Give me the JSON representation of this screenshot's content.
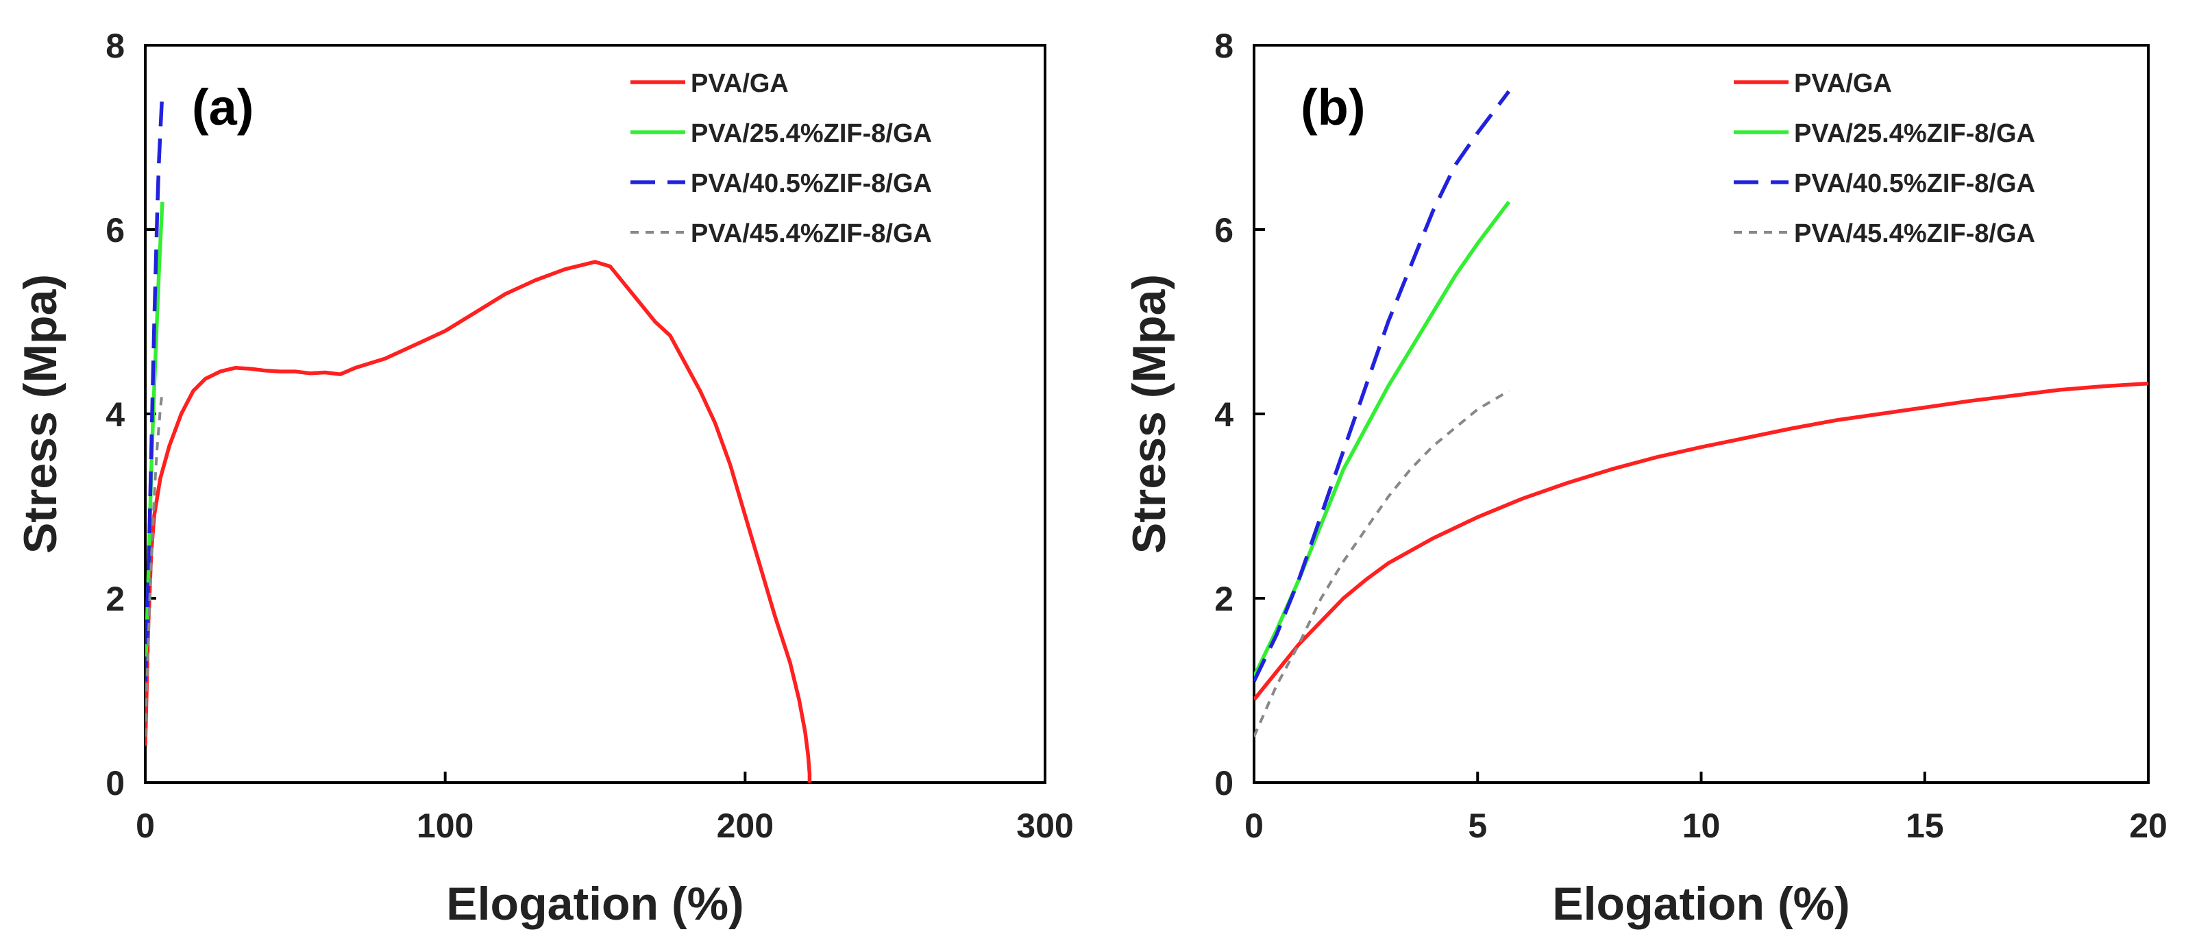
{
  "chart_data": [
    {
      "type": "line",
      "panel_label": "(a)",
      "xlabel": "Elogation (%)",
      "ylabel": "Stress (Mpa)",
      "xlim": [
        0,
        300
      ],
      "ylim": [
        0,
        8
      ],
      "xticks": [
        0,
        100,
        200,
        300
      ],
      "yticks": [
        0,
        2,
        4,
        6,
        8
      ],
      "legend_position": "top-right",
      "series": [
        {
          "name": "PVA/GA",
          "color": "#ff2020",
          "style": "solid",
          "x": [
            0,
            1,
            2,
            3,
            5,
            8,
            12,
            16,
            20,
            25,
            30,
            35,
            40,
            45,
            50,
            55,
            60,
            65,
            70,
            75,
            80,
            90,
            100,
            110,
            120,
            130,
            140,
            150,
            155,
            160,
            165,
            170,
            175,
            180,
            185,
            190,
            195,
            200,
            205,
            210,
            215,
            218,
            220,
            221,
            221.5,
            221.5
          ],
          "y": [
            0.4,
            1.7,
            2.5,
            2.9,
            3.3,
            3.65,
            4.0,
            4.25,
            4.38,
            4.46,
            4.5,
            4.49,
            4.47,
            4.46,
            4.46,
            4.44,
            4.45,
            4.43,
            4.5,
            4.55,
            4.6,
            4.75,
            4.9,
            5.1,
            5.3,
            5.45,
            5.57,
            5.65,
            5.6,
            5.4,
            5.2,
            5.0,
            4.85,
            4.55,
            4.25,
            3.9,
            3.45,
            2.9,
            2.35,
            1.8,
            1.3,
            0.9,
            0.55,
            0.3,
            0.1,
            0
          ]
        },
        {
          "name": "PVA/25.4%ZIF-8/GA",
          "color": "#33ee33",
          "style": "solid",
          "x": [
            0,
            0.5,
            1,
            1.5,
            2,
            2.5,
            3,
            3.5,
            4,
            4.5,
            5,
            5.7
          ],
          "y": [
            1.15,
            1.65,
            2.2,
            2.8,
            3.4,
            3.85,
            4.3,
            4.7,
            5.1,
            5.5,
            5.85,
            6.3
          ]
        },
        {
          "name": "PVA/40.5%ZIF-8/GA",
          "color": "#2222dd",
          "style": "dashed",
          "x": [
            0,
            0.5,
            1,
            1.5,
            2,
            2.5,
            3,
            3.5,
            4,
            4.5,
            5,
            5.7
          ],
          "y": [
            1.1,
            1.6,
            2.2,
            2.9,
            3.6,
            4.3,
            5.0,
            5.6,
            6.2,
            6.7,
            7.05,
            7.5
          ]
        },
        {
          "name": "PVA/45.4%ZIF-8/GA",
          "color": "#888888",
          "style": "dotted",
          "x": [
            0,
            0.5,
            1,
            1.5,
            2,
            2.5,
            3,
            3.5,
            4,
            4.5,
            5,
            5.7
          ],
          "y": [
            0.5,
            1.05,
            1.5,
            2.0,
            2.4,
            2.75,
            3.1,
            3.4,
            3.65,
            3.85,
            4.05,
            4.25
          ]
        }
      ]
    },
    {
      "type": "line",
      "panel_label": "(b)",
      "xlabel": "Elogation (%)",
      "ylabel": "Stress (Mpa)",
      "xlim": [
        0,
        20
      ],
      "ylim": [
        0,
        8
      ],
      "xticks": [
        0,
        5,
        10,
        15,
        20
      ],
      "yticks": [
        0,
        2,
        4,
        6,
        8
      ],
      "legend_position": "top-right",
      "series": [
        {
          "name": "PVA/GA",
          "color": "#ff2020",
          "style": "solid",
          "x": [
            0,
            0.5,
            1,
            1.5,
            2,
            2.5,
            3,
            4,
            5,
            6,
            7,
            8,
            9,
            10,
            11,
            12,
            13,
            14,
            15,
            16,
            17,
            18,
            19,
            20
          ],
          "y": [
            0.9,
            1.2,
            1.5,
            1.75,
            2.0,
            2.2,
            2.38,
            2.65,
            2.88,
            3.08,
            3.25,
            3.4,
            3.53,
            3.64,
            3.74,
            3.84,
            3.93,
            4.0,
            4.07,
            4.14,
            4.2,
            4.26,
            4.3,
            4.33
          ]
        },
        {
          "name": "PVA/25.4%ZIF-8/GA",
          "color": "#33ee33",
          "style": "solid",
          "x": [
            0,
            0.5,
            1,
            1.5,
            2,
            2.5,
            3,
            3.5,
            4,
            4.5,
            5,
            5.7
          ],
          "y": [
            1.15,
            1.65,
            2.2,
            2.8,
            3.4,
            3.85,
            4.3,
            4.7,
            5.1,
            5.5,
            5.85,
            6.3
          ]
        },
        {
          "name": "PVA/40.5%ZIF-8/GA",
          "color": "#2222dd",
          "style": "dashed",
          "x": [
            0,
            0.5,
            1,
            1.5,
            2,
            2.5,
            3,
            3.5,
            4,
            4.5,
            5,
            5.7
          ],
          "y": [
            1.1,
            1.6,
            2.2,
            2.9,
            3.6,
            4.3,
            5.0,
            5.6,
            6.2,
            6.7,
            7.05,
            7.5
          ]
        },
        {
          "name": "PVA/45.4%ZIF-8/GA",
          "color": "#888888",
          "style": "dotted",
          "x": [
            0,
            0.5,
            1,
            1.5,
            2,
            2.5,
            3,
            3.5,
            4,
            4.5,
            5,
            5.7
          ],
          "y": [
            0.5,
            1.05,
            1.5,
            2.0,
            2.4,
            2.75,
            3.1,
            3.4,
            3.65,
            3.85,
            4.05,
            4.25
          ]
        }
      ]
    }
  ]
}
